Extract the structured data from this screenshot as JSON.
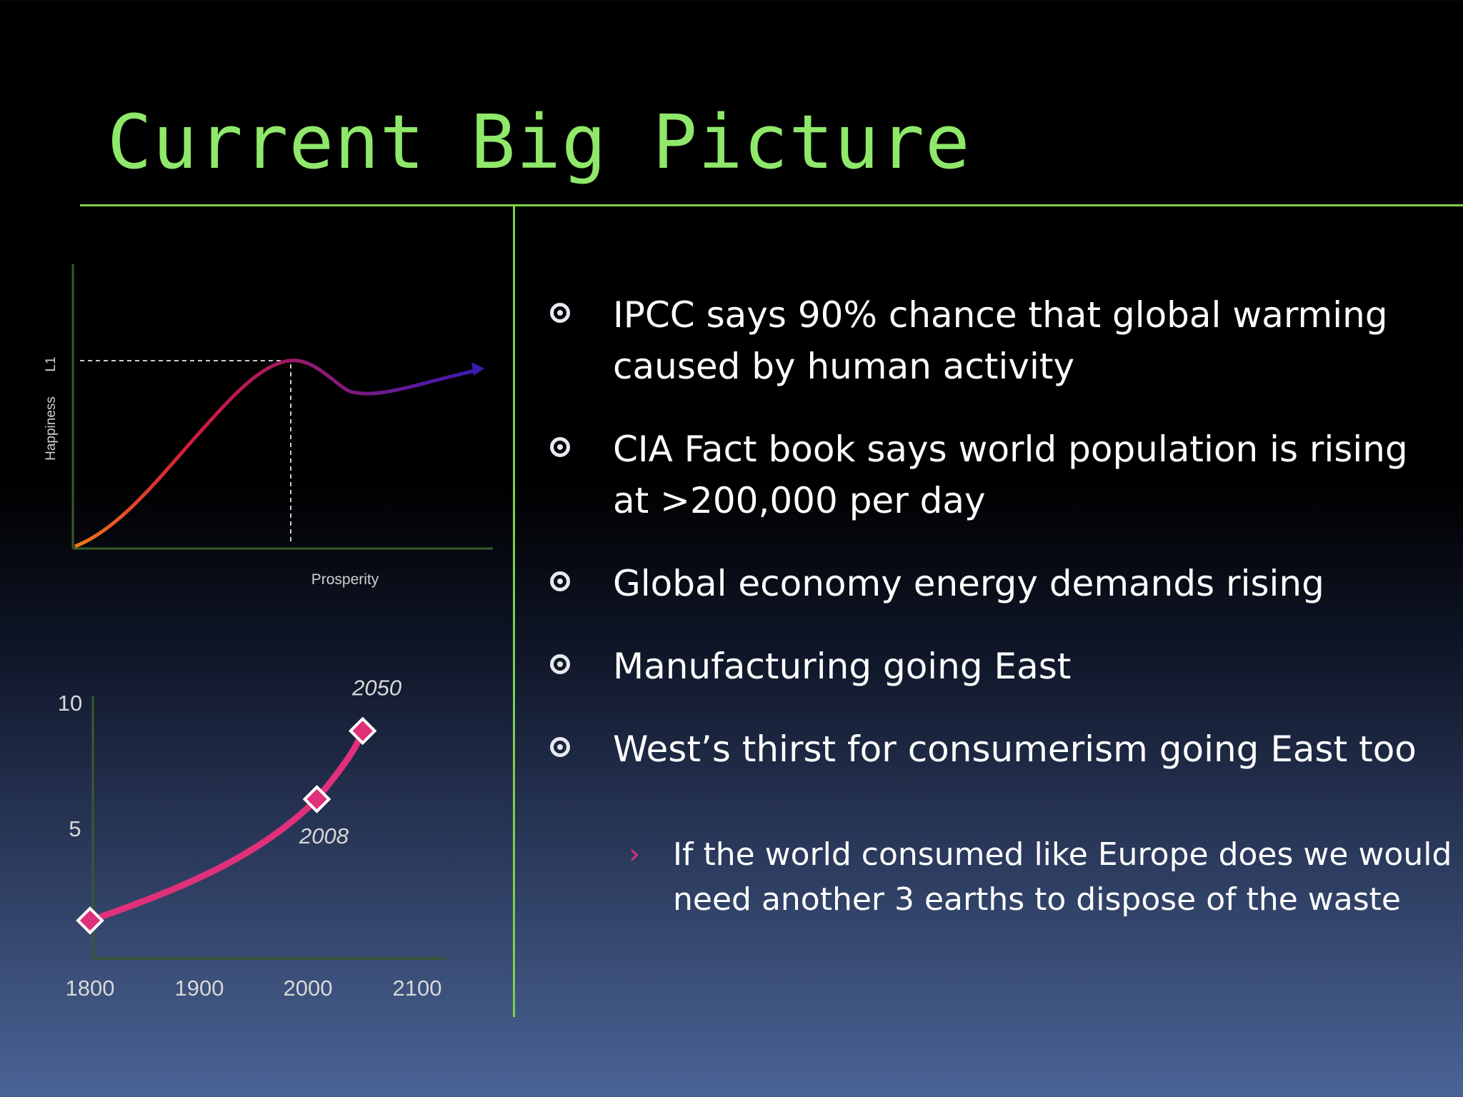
{
  "slide": {
    "title": "Current Big Picture",
    "bullets": [
      {
        "text": "IPCC says 90% chance that global warming caused by human activity"
      },
      {
        "text": "CIA Fact book says world population is rising at >200,000 per day"
      },
      {
        "text": "Global  economy energy demands rising"
      },
      {
        "text": "Manufacturing going East"
      },
      {
        "text": "West’s thirst for consumerism going East too"
      }
    ],
    "sub_bullet": "If the world consumed like Europe does we would need another 3 earths to dispose of the waste",
    "marker_icon": "target-circle-icon",
    "sub_marker_icon": "chevron-right-icon",
    "colors": {
      "title": "#8fe86a",
      "rule": "#7fcf4a",
      "accent": "#e0307a"
    }
  },
  "chart_data": [
    {
      "type": "line",
      "xlabel": "Prosperity",
      "ylabel": "Happiness",
      "peak_label": "L1",
      "shape": "rises to a peak, dips, then rises slowly",
      "grid": false
    },
    {
      "type": "line",
      "x": [
        1800,
        2008,
        2050
      ],
      "y": [
        1.5,
        6.3,
        9.0
      ],
      "point_labels": [
        "",
        "2008",
        "2050"
      ],
      "x_ticks": [
        "1800",
        "1900",
        "2000",
        "2100"
      ],
      "y_ticks": [
        "10",
        "5"
      ],
      "xlim": [
        1800,
        2100
      ],
      "ylim": [
        0,
        10
      ],
      "grid": false,
      "line_color": "#e0307a"
    }
  ]
}
